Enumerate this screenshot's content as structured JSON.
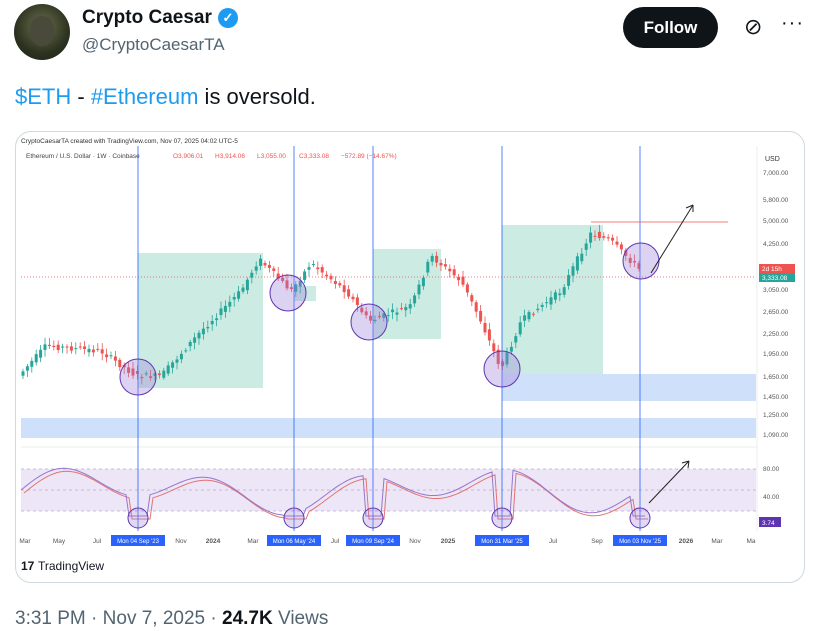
{
  "author": {
    "name": "Crypto Caesar",
    "handle": "@CryptoCaesarTA",
    "verified": true,
    "verified_icon": "verified-badge-icon"
  },
  "actions": {
    "follow_label": "Follow",
    "mute_icon": "mute-icon",
    "more_icon": "more-icon"
  },
  "tweet": {
    "parts": [
      {
        "text": "$ETH",
        "link": true
      },
      {
        "text": " - ",
        "link": false
      },
      {
        "text": "#Ethereum",
        "link": true
      },
      {
        "text": " is oversold.",
        "link": false
      }
    ]
  },
  "chart_image": {
    "watermark_header": "CryptoCaesarTA created with TradingView.com, Nov 07, 2025 04:02 UTC-5",
    "symbol": "Ethereum / U.S. Dollar · 1W · Coinbase",
    "ohlc": {
      "o": "O3,906.01",
      "h": "H3,914.06",
      "l": "L3,055.00",
      "c": "C3,333.08",
      "chg": "−572.89 (−14.67%)"
    },
    "currency": "USD",
    "price_ticks": [
      "7,000.00",
      "5,800.00",
      "5,000.00",
      "4,250.00",
      "3,050.00",
      "2,650.00",
      "2,250.00",
      "1,950.00",
      "1,650.00",
      "1,450.00",
      "1,250.00",
      "1,090.00"
    ],
    "price_tag_countdown": "2d 15h",
    "price_tag_last": "3,333.08",
    "osc_ticks": [
      "80.00",
      "40.00"
    ],
    "osc_tag": "3.74",
    "time_ticks": [
      "Mar",
      "May",
      "Jul",
      "Nov",
      "2024",
      "Mar",
      "Jul",
      "Nov",
      "2025",
      "Jul",
      "Sep",
      "2026",
      "Mar",
      "Ma"
    ],
    "marker_dates": [
      "Mon 04 Sep '23",
      "Mon 06 May '24",
      "Mon 09 Sep '24",
      "Mon 31 Mar '25",
      "Mon 03 Nov '25"
    ],
    "logo": "TradingView",
    "colors": {
      "up": "#26a69a",
      "down": "#ef5350",
      "zone_green": "#b9e4da",
      "zone_blue": "#cfe0fb",
      "marker": "#2962ff",
      "circle": "#9c7fd6"
    }
  },
  "footer": {
    "time": "3:31 PM",
    "date": "Nov 7, 2025",
    "views_count": "24.7K",
    "views_label": "Views"
  }
}
